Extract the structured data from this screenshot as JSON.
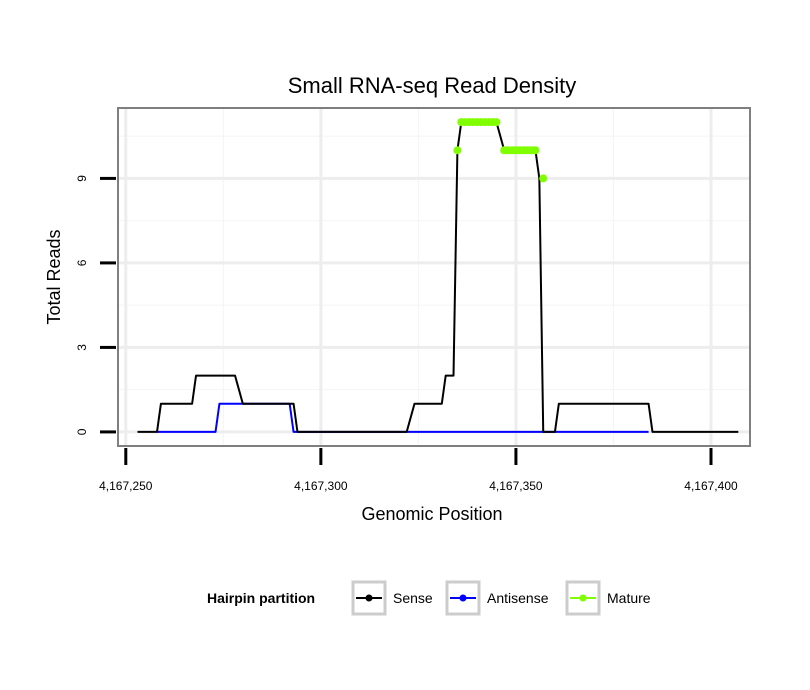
{
  "chart_data": {
    "type": "line",
    "title": "Small RNA-seq Read Density",
    "xlabel": "Genomic Position",
    "ylabel": "Total Reads",
    "xlim": [
      4167248,
      4167410
    ],
    "ylim": [
      -0.5,
      11.5
    ],
    "x_ticks": [
      4167250,
      4167300,
      4167350,
      4167400
    ],
    "x_tick_labels": [
      "4,167,250",
      "4,167,300",
      "4,167,350",
      "4,167,400"
    ],
    "y_ticks": [
      0,
      3,
      6,
      9
    ],
    "y_tick_labels": [
      "0",
      "3",
      "6",
      "9"
    ],
    "grid": true,
    "legend": {
      "title": "Hairpin partition",
      "placement": "bottom",
      "entries": [
        {
          "label": "Sense",
          "color": "#000000"
        },
        {
          "label": "Antisense",
          "color": "#0000ff"
        },
        {
          "label": "Mature",
          "color": "#7fff00"
        }
      ]
    },
    "series": [
      {
        "name": "Sense",
        "color": "#000000",
        "points": [
          [
            4167253,
            0
          ],
          [
            4167258,
            0
          ],
          [
            4167259,
            1
          ],
          [
            4167267,
            1
          ],
          [
            4167268,
            2
          ],
          [
            4167278,
            2
          ],
          [
            4167280,
            1
          ],
          [
            4167293,
            1
          ],
          [
            4167294,
            0
          ],
          [
            4167322,
            0
          ],
          [
            4167324,
            1
          ],
          [
            4167331,
            1
          ],
          [
            4167332,
            2
          ],
          [
            4167334,
            2
          ],
          [
            4167335,
            10
          ],
          [
            4167336,
            11
          ],
          [
            4167345,
            11
          ],
          [
            4167347,
            10
          ],
          [
            4167355,
            10
          ],
          [
            4167356,
            9
          ],
          [
            4167357,
            0
          ],
          [
            4167360,
            0
          ],
          [
            4167361,
            1
          ],
          [
            4167384,
            1
          ],
          [
            4167385,
            0
          ],
          [
            4167407,
            0
          ]
        ]
      },
      {
        "name": "Antisense",
        "color": "#0000ff",
        "points": [
          [
            4167258,
            0
          ],
          [
            4167273,
            0
          ],
          [
            4167274,
            1
          ],
          [
            4167292,
            1
          ],
          [
            4167293,
            0
          ],
          [
            4167384,
            0
          ]
        ]
      },
      {
        "name": "Mature",
        "color": "#7fff00",
        "points": [
          [
            4167335,
            10
          ],
          [
            4167336,
            11
          ],
          [
            4167337,
            11
          ],
          [
            4167338,
            11
          ],
          [
            4167339,
            11
          ],
          [
            4167340,
            11
          ],
          [
            4167341,
            11
          ],
          [
            4167342,
            11
          ],
          [
            4167343,
            11
          ],
          [
            4167344,
            11
          ],
          [
            4167345,
            11
          ],
          [
            4167347,
            10
          ],
          [
            4167348,
            10
          ],
          [
            4167349,
            10
          ],
          [
            4167350,
            10
          ],
          [
            4167351,
            10
          ],
          [
            4167352,
            10
          ],
          [
            4167353,
            10
          ],
          [
            4167354,
            10
          ],
          [
            4167355,
            10
          ],
          [
            4167357,
            9
          ]
        ]
      }
    ]
  }
}
